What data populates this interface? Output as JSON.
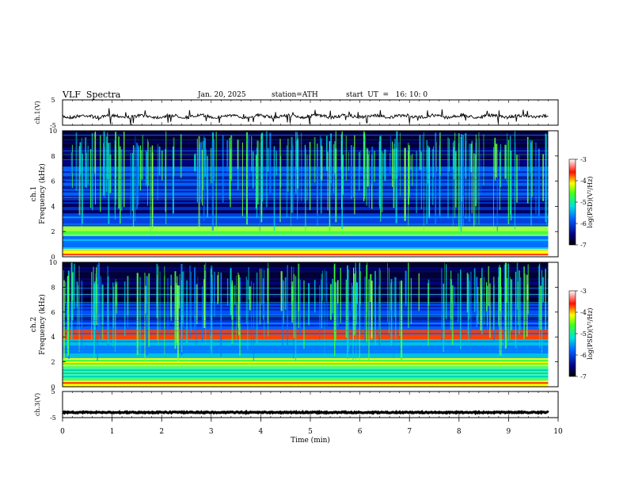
{
  "header": {
    "title": "VLF  Spectra",
    "date": "Jan. 20, 2025",
    "station": "station=ATH",
    "start": "start  UT  =   16: 10: 0"
  },
  "chart_data": [
    {
      "type": "line",
      "panel": "ch1-waveform",
      "ylabel": "ch.1(V)",
      "yticks": [
        "5",
        "-5"
      ],
      "ylim": [
        -5,
        5
      ],
      "xlim": [
        0,
        10
      ],
      "data_extent_min": 9.8,
      "approx_level_v": -1.5
    },
    {
      "type": "heatmap",
      "panel": "ch1-spectrogram",
      "ylabel": "ch.1\nFrequency (kHz)",
      "yticks": [
        "0",
        "2",
        "4",
        "6",
        "8",
        "10"
      ],
      "ylim": [
        0,
        10
      ],
      "xlim": [
        0,
        10
      ],
      "data_extent_min": 9.8,
      "colorbar": {
        "label": "log(PSD)(V²/Hz)",
        "ticks": [
          "-3",
          "-4",
          "-5",
          "-6",
          "-7"
        ],
        "range": [
          -7,
          -3
        ]
      }
    },
    {
      "type": "heatmap",
      "panel": "ch2-spectrogram",
      "ylabel": "ch.2\nFrequency (kHz)",
      "yticks": [
        "0",
        "2",
        "4",
        "6",
        "8",
        "10"
      ],
      "ylim": [
        0,
        10
      ],
      "xlim": [
        0,
        10
      ],
      "data_extent_min": 9.8,
      "colorbar": {
        "label": "log(PSD)(V²/Hz)",
        "ticks": [
          "-3",
          "-4",
          "-5",
          "-6",
          "-7"
        ],
        "range": [
          -7,
          -3
        ]
      }
    },
    {
      "type": "line",
      "panel": "ch3-waveform",
      "ylabel": "ch.3(V)",
      "yticks": [
        "5",
        "-5"
      ],
      "ylim": [
        -5,
        5
      ],
      "xlim": [
        0,
        10
      ],
      "data_extent_min": 9.8,
      "approx_level_v": -3
    }
  ],
  "xaxis": {
    "label": "Time  (min)",
    "ticks": [
      "0",
      "1",
      "2",
      "3",
      "4",
      "5",
      "6",
      "7",
      "8",
      "9",
      "10"
    ]
  },
  "colors": {
    "low": "#000040",
    "mid_low": "#0050ff",
    "mid": "#00e0c0",
    "mid_high": "#40ff40",
    "high": "#ff2000",
    "max": "#ffffff"
  }
}
